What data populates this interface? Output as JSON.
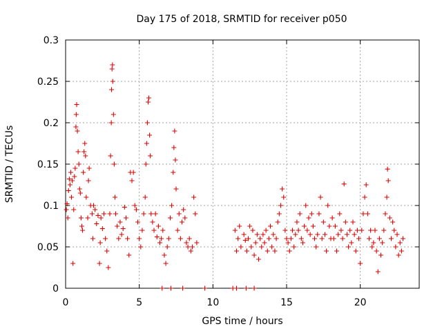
{
  "chart_data": {
    "type": "scatter",
    "title": "Day 175 of 2018, SRMTID for receiver p050",
    "xlabel": "GPS time / hours",
    "ylabel": "SRMTID / TECUs",
    "xlim": [
      0,
      24
    ],
    "ylim": [
      0,
      0.3
    ],
    "xticks": [
      0,
      5,
      10,
      15,
      20
    ],
    "xtick_labels": [
      "0",
      "5",
      "10",
      "15",
      "20"
    ],
    "yticks": [
      0,
      0.05,
      0.1,
      0.15,
      0.2,
      0.25,
      0.3
    ],
    "ytick_labels": [
      "0",
      "0.05",
      "0.1",
      "0.15",
      "0.2",
      "0.25",
      "0.3"
    ],
    "grid": true,
    "marker": "plus",
    "color": "#e00000",
    "series": [
      {
        "name": "SRMTID",
        "points": [
          [
            0.05,
            0.095
          ],
          [
            0.1,
            0.102
          ],
          [
            0.15,
            0.085
          ],
          [
            0.2,
            0.118
          ],
          [
            0.25,
            0.132
          ],
          [
            0.3,
            0.125
          ],
          [
            0.35,
            0.14
          ],
          [
            0.4,
            0.11
          ],
          [
            0.45,
            0.13
          ],
          [
            0.5,
            0.03
          ],
          [
            0.55,
            0.095
          ],
          [
            0.6,
            0.135
          ],
          [
            0.65,
            0.145
          ],
          [
            0.7,
            0.195
          ],
          [
            0.72,
            0.21
          ],
          [
            0.75,
            0.222
          ],
          [
            0.8,
            0.19
          ],
          [
            0.85,
            0.165
          ],
          [
            0.9,
            0.15
          ],
          [
            0.95,
            0.12
          ],
          [
            1.0,
            0.115
          ],
          [
            1.05,
            0.085
          ],
          [
            1.1,
            0.075
          ],
          [
            1.15,
            0.07
          ],
          [
            1.2,
            0.14
          ],
          [
            1.25,
            0.165
          ],
          [
            1.3,
            0.175
          ],
          [
            1.35,
            0.16
          ],
          [
            1.4,
            0.11
          ],
          [
            1.5,
            0.085
          ],
          [
            1.55,
            0.13
          ],
          [
            1.6,
            0.145
          ],
          [
            1.7,
            0.1
          ],
          [
            1.8,
            0.09
          ],
          [
            1.85,
            0.06
          ],
          [
            1.9,
            0.1
          ],
          [
            2.0,
            0.095
          ],
          [
            2.1,
            0.078
          ],
          [
            2.2,
            0.088
          ],
          [
            2.3,
            0.03
          ],
          [
            2.35,
            0.055
          ],
          [
            2.4,
            0.085
          ],
          [
            2.5,
            0.072
          ],
          [
            2.6,
            0.09
          ],
          [
            2.7,
            0.06
          ],
          [
            2.8,
            0.045
          ],
          [
            2.9,
            0.025
          ],
          [
            3.0,
            0.09
          ],
          [
            3.05,
            0.16
          ],
          [
            3.1,
            0.2
          ],
          [
            3.12,
            0.24
          ],
          [
            3.15,
            0.265
          ],
          [
            3.18,
            0.27
          ],
          [
            3.2,
            0.25
          ],
          [
            3.25,
            0.21
          ],
          [
            3.3,
            0.15
          ],
          [
            3.35,
            0.11
          ],
          [
            3.4,
            0.09
          ],
          [
            3.5,
            0.075
          ],
          [
            3.6,
            0.06
          ],
          [
            3.7,
            0.08
          ],
          [
            3.8,
            0.065
          ],
          [
            3.9,
            0.072
          ],
          [
            4.0,
            0.098
          ],
          [
            4.1,
            0.085
          ],
          [
            4.2,
            0.06
          ],
          [
            4.3,
            0.04
          ],
          [
            4.4,
            0.14
          ],
          [
            4.5,
            0.13
          ],
          [
            4.6,
            0.14
          ],
          [
            4.7,
            0.1
          ],
          [
            4.8,
            0.095
          ],
          [
            4.9,
            0.08
          ],
          [
            5.0,
            0.06
          ],
          [
            5.1,
            0.05
          ],
          [
            5.2,
            0.07
          ],
          [
            5.3,
            0.09
          ],
          [
            5.4,
            0.11
          ],
          [
            5.45,
            0.15
          ],
          [
            5.5,
            0.175
          ],
          [
            5.55,
            0.2
          ],
          [
            5.6,
            0.225
          ],
          [
            5.65,
            0.23
          ],
          [
            5.7,
            0.185
          ],
          [
            5.75,
            0.16
          ],
          [
            5.8,
            0.09
          ],
          [
            5.9,
            0.08
          ],
          [
            6.0,
            0.07
          ],
          [
            6.1,
            0.09
          ],
          [
            6.2,
            0.062
          ],
          [
            6.3,
            0.075
          ],
          [
            6.4,
            0.055
          ],
          [
            6.5,
            0.06
          ],
          [
            6.6,
            0.07
          ],
          [
            6.7,
            0.04
          ],
          [
            6.8,
            0.03
          ],
          [
            6.9,
            0.05
          ],
          [
            7.0,
            0.06
          ],
          [
            7.1,
            0.085
          ],
          [
            7.2,
            0.1
          ],
          [
            7.3,
            0.14
          ],
          [
            7.35,
            0.17
          ],
          [
            7.4,
            0.19
          ],
          [
            7.45,
            0.155
          ],
          [
            7.5,
            0.12
          ],
          [
            7.6,
            0.07
          ],
          [
            7.7,
            0.09
          ],
          [
            7.8,
            0.06
          ],
          [
            7.9,
            0.08
          ],
          [
            8.0,
            0.095
          ],
          [
            8.1,
            0.085
          ],
          [
            8.2,
            0.055
          ],
          [
            8.3,
            0.05
          ],
          [
            8.4,
            0.06
          ],
          [
            8.5,
            0.045
          ],
          [
            8.6,
            0.05
          ],
          [
            8.7,
            0.11
          ],
          [
            8.8,
            0.09
          ],
          [
            8.9,
            0.055
          ],
          [
            11.5,
            0.07
          ],
          [
            11.6,
            0.045
          ],
          [
            11.7,
            0.06
          ],
          [
            11.8,
            0.075
          ],
          [
            11.9,
            0.05
          ],
          [
            12.1,
            0.065
          ],
          [
            12.2,
            0.058
          ],
          [
            12.3,
            0.045
          ],
          [
            12.4,
            0.06
          ],
          [
            12.5,
            0.075
          ],
          [
            12.6,
            0.05
          ],
          [
            12.7,
            0.07
          ],
          [
            12.8,
            0.04
          ],
          [
            12.9,
            0.055
          ],
          [
            13.0,
            0.065
          ],
          [
            13.1,
            0.035
          ],
          [
            13.2,
            0.06
          ],
          [
            13.3,
            0.05
          ],
          [
            13.4,
            0.065
          ],
          [
            13.5,
            0.055
          ],
          [
            13.6,
            0.07
          ],
          [
            13.7,
            0.045
          ],
          [
            13.8,
            0.06
          ],
          [
            13.9,
            0.075
          ],
          [
            14.0,
            0.05
          ],
          [
            14.1,
            0.065
          ],
          [
            14.2,
            0.045
          ],
          [
            14.3,
            0.06
          ],
          [
            14.4,
            0.08
          ],
          [
            14.5,
            0.09
          ],
          [
            14.6,
            0.1
          ],
          [
            14.7,
            0.12
          ],
          [
            14.8,
            0.11
          ],
          [
            14.9,
            0.07
          ],
          [
            15.0,
            0.06
          ],
          [
            15.1,
            0.055
          ],
          [
            15.2,
            0.045
          ],
          [
            15.3,
            0.06
          ],
          [
            15.4,
            0.07
          ],
          [
            15.5,
            0.05
          ],
          [
            15.6,
            0.065
          ],
          [
            15.7,
            0.08
          ],
          [
            15.8,
            0.07
          ],
          [
            15.9,
            0.09
          ],
          [
            16.0,
            0.06
          ],
          [
            16.1,
            0.055
          ],
          [
            16.2,
            0.075
          ],
          [
            16.3,
            0.1
          ],
          [
            16.4,
            0.07
          ],
          [
            16.5,
            0.085
          ],
          [
            16.6,
            0.065
          ],
          [
            16.7,
            0.09
          ],
          [
            16.8,
            0.075
          ],
          [
            16.9,
            0.06
          ],
          [
            17.0,
            0.05
          ],
          [
            17.1,
            0.065
          ],
          [
            17.2,
            0.09
          ],
          [
            17.3,
            0.11
          ],
          [
            17.4,
            0.06
          ],
          [
            17.5,
            0.08
          ],
          [
            17.6,
            0.065
          ],
          [
            17.7,
            0.045
          ],
          [
            17.8,
            0.1
          ],
          [
            17.9,
            0.075
          ],
          [
            18.0,
            0.06
          ],
          [
            18.1,
            0.085
          ],
          [
            18.2,
            0.06
          ],
          [
            18.3,
            0.075
          ],
          [
            18.4,
            0.045
          ],
          [
            18.5,
            0.065
          ],
          [
            18.6,
            0.09
          ],
          [
            18.7,
            0.07
          ],
          [
            18.8,
            0.06
          ],
          [
            18.9,
            0.126
          ],
          [
            19.0,
            0.08
          ],
          [
            19.1,
            0.065
          ],
          [
            19.2,
            0.05
          ],
          [
            19.3,
            0.07
          ],
          [
            19.4,
            0.055
          ],
          [
            19.5,
            0.08
          ],
          [
            19.6,
            0.065
          ],
          [
            19.7,
            0.045
          ],
          [
            19.8,
            0.07
          ],
          [
            19.9,
            0.06
          ],
          [
            20.0,
            0.03
          ],
          [
            20.1,
            0.07
          ],
          [
            20.2,
            0.09
          ],
          [
            20.3,
            0.11
          ],
          [
            20.4,
            0.125
          ],
          [
            20.5,
            0.09
          ],
          [
            20.6,
            0.06
          ],
          [
            20.7,
            0.07
          ],
          [
            20.8,
            0.05
          ],
          [
            20.9,
            0.055
          ],
          [
            21.0,
            0.07
          ],
          [
            21.1,
            0.045
          ],
          [
            21.2,
            0.02
          ],
          [
            21.3,
            0.06
          ],
          [
            21.4,
            0.04
          ],
          [
            21.5,
            0.055
          ],
          [
            21.6,
            0.07
          ],
          [
            21.7,
            0.09
          ],
          [
            21.8,
            0.11
          ],
          [
            21.85,
            0.144
          ],
          [
            21.9,
            0.13
          ],
          [
            22.0,
            0.085
          ],
          [
            22.1,
            0.06
          ],
          [
            22.2,
            0.08
          ],
          [
            22.3,
            0.07
          ],
          [
            22.4,
            0.05
          ],
          [
            22.5,
            0.065
          ],
          [
            22.6,
            0.04
          ],
          [
            22.7,
            0.055
          ],
          [
            22.8,
            0.045
          ],
          [
            22.9,
            0.06
          ],
          [
            6.55,
            0.0
          ],
          [
            7.15,
            0.0
          ],
          [
            7.95,
            0.0
          ],
          [
            9.45,
            0.0
          ],
          [
            11.35,
            0.0
          ],
          [
            11.6,
            0.0
          ],
          [
            12.25,
            0.0
          ],
          [
            12.8,
            0.0
          ]
        ]
      }
    ]
  }
}
